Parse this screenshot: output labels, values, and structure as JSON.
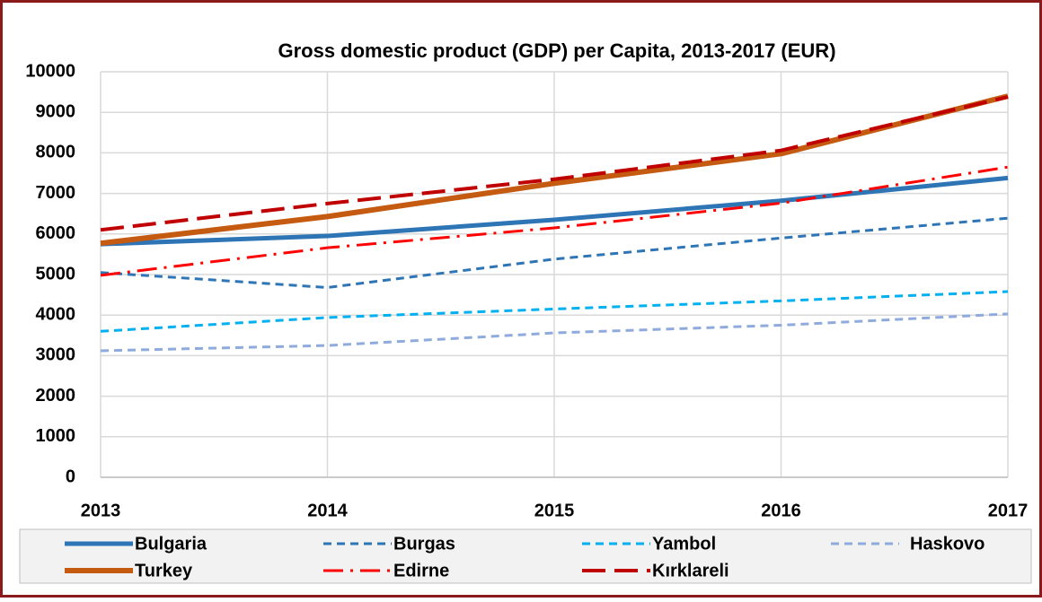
{
  "chart_data": {
    "type": "line",
    "title": "Gross domestic product (GDP) per Capita, 2013-2017 (EUR)",
    "x": [
      2013,
      2014,
      2015,
      2016,
      2017
    ],
    "xlim": [
      2013,
      2017
    ],
    "xticks": [
      2013,
      2014,
      2015,
      2016,
      2017
    ],
    "ylim": [
      0,
      10000
    ],
    "yticks": [
      0,
      1000,
      2000,
      3000,
      4000,
      5000,
      6000,
      7000,
      8000,
      9000,
      10000
    ],
    "grid": true,
    "legend": "bottom",
    "series": [
      {
        "name": "Bulgaria",
        "color": "#2e75b6",
        "width": 5,
        "dash": "solid",
        "values": [
          5750,
          5950,
          6350,
          6820,
          7380
        ]
      },
      {
        "name": "Burgas",
        "color": "#2e75b6",
        "width": 3,
        "dash": "dash",
        "values": [
          5050,
          4680,
          5380,
          5900,
          6390
        ]
      },
      {
        "name": "Yambol",
        "color": "#00b0f0",
        "width": 3,
        "dash": "dash",
        "values": [
          3600,
          3940,
          4150,
          4350,
          4580
        ]
      },
      {
        "name": "Haskovo",
        "color": "#8faadc",
        "width": 3,
        "dash": "dash",
        "values": [
          3120,
          3250,
          3560,
          3750,
          4030
        ]
      },
      {
        "name": "Turkey",
        "color": "#c55a11",
        "width": 6,
        "dash": "solid",
        "values": [
          5770,
          6430,
          7250,
          7980,
          9400
        ]
      },
      {
        "name": "Edirne",
        "color": "#ff0000",
        "width": 3,
        "dash": "dashdot",
        "values": [
          4980,
          5660,
          6150,
          6760,
          7650
        ]
      },
      {
        "name": "Kırklareli",
        "color": "#c00000",
        "width": 4,
        "dash": "longdash",
        "values": [
          6100,
          6750,
          7350,
          8060,
          9380
        ]
      }
    ]
  }
}
